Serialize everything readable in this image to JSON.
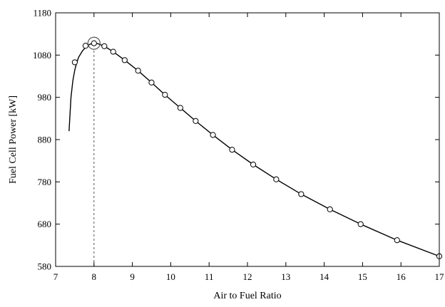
{
  "chart_data": {
    "type": "line",
    "xlabel": "Air to Fuel Ratio",
    "ylabel": "Fuel Cell Power [kW]",
    "xlim": [
      7,
      17
    ],
    "ylim": [
      580,
      1180
    ],
    "xticks": [
      7,
      8,
      9,
      10,
      11,
      12,
      13,
      14,
      15,
      16,
      17
    ],
    "yticks": [
      580,
      680,
      780,
      880,
      980,
      1080,
      1180
    ],
    "grid": false,
    "series": [
      {
        "curve": [
          [
            7.35,
            900
          ],
          [
            7.4,
            980
          ],
          [
            7.45,
            1020
          ],
          [
            7.5,
            1045
          ],
          [
            7.55,
            1062
          ],
          [
            7.6,
            1075
          ],
          [
            7.7,
            1090
          ],
          [
            7.8,
            1100
          ],
          [
            7.9,
            1106
          ],
          [
            8.0,
            1108
          ],
          [
            8.1,
            1107
          ],
          [
            8.27,
            1101
          ],
          [
            8.5,
            1088
          ],
          [
            8.8,
            1068
          ],
          [
            9.15,
            1043
          ],
          [
            9.5,
            1015
          ],
          [
            9.85,
            986
          ],
          [
            10.25,
            955
          ],
          [
            10.65,
            924
          ],
          [
            11.1,
            891
          ],
          [
            11.6,
            856
          ],
          [
            12.15,
            821
          ],
          [
            12.75,
            786
          ],
          [
            13.4,
            751
          ],
          [
            14.15,
            715
          ],
          [
            14.95,
            680
          ],
          [
            15.9,
            642
          ],
          [
            17.0,
            604
          ]
        ],
        "markers": [
          [
            7.5,
            1063
          ],
          [
            7.78,
            1102
          ],
          [
            8.0,
            1108
          ],
          [
            8.27,
            1101
          ],
          [
            8.5,
            1088
          ],
          [
            8.8,
            1068
          ],
          [
            9.15,
            1043
          ],
          [
            9.5,
            1015
          ],
          [
            9.85,
            986
          ],
          [
            10.25,
            955
          ],
          [
            10.65,
            924
          ],
          [
            11.1,
            891
          ],
          [
            11.6,
            856
          ],
          [
            12.15,
            821
          ],
          [
            12.75,
            786
          ],
          [
            13.4,
            751
          ],
          [
            14.15,
            715
          ],
          [
            14.95,
            680
          ],
          [
            15.9,
            642
          ],
          [
            17.0,
            604
          ]
        ]
      }
    ],
    "annotations": [
      {
        "type": "highlight-circle",
        "x": 8.0,
        "y": 1108
      },
      {
        "type": "dashed-vertical-line",
        "x": 8.0,
        "from_y": 580,
        "to_y": 1108
      }
    ]
  }
}
